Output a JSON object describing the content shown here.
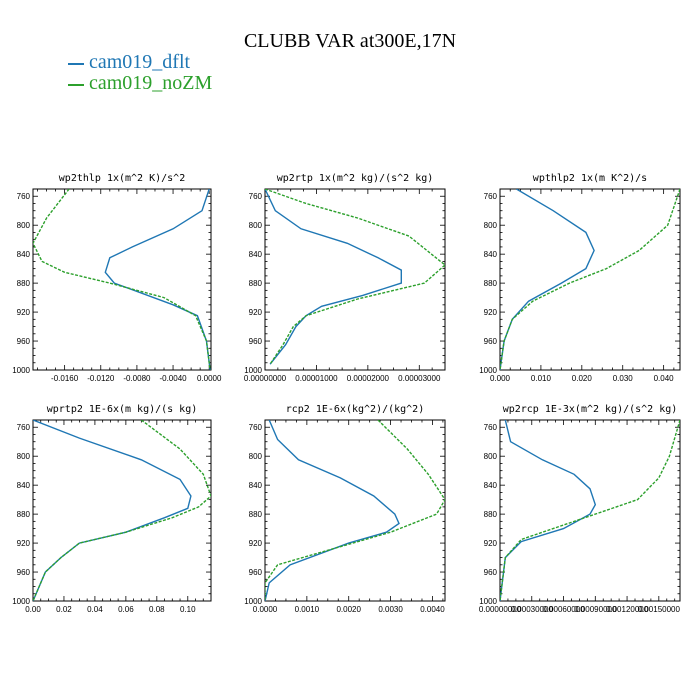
{
  "title": "CLUBB VAR at300E,17N",
  "legend": [
    {
      "label": "cam019_dflt",
      "color": "#1f77b4"
    },
    {
      "label": "cam019_noZM",
      "color": "#2ca02c"
    }
  ],
  "chart_data": [
    {
      "type": "line",
      "title": "wp2thlp  1x(m^2 K)/s^2",
      "ylim": [
        1000,
        750
      ],
      "yticks": [
        760,
        800,
        840,
        880,
        920,
        960,
        1000
      ],
      "xlim": [
        -0.0195,
        0.0002
      ],
      "xticks": [
        -0.016,
        -0.012,
        -0.008,
        -0.004,
        0.0
      ],
      "xtick_labels": [
        "-0.0160",
        "-0.0120",
        "-0.0080",
        "-0.0040",
        "0.0000"
      ],
      "series": [
        {
          "name": "cam019_dflt",
          "color": "#1f77b4",
          "dashed": false,
          "x": [
            0.0,
            -0.0008,
            -0.004,
            -0.0085,
            -0.011,
            -0.0115,
            -0.0105,
            -0.004,
            -0.0013,
            -0.0003,
            0.0001
          ],
          "y": [
            750,
            780,
            805,
            830,
            845,
            865,
            880,
            910,
            925,
            960,
            1000
          ]
        },
        {
          "name": "cam019_noZM",
          "color": "#2ca02c",
          "dashed": true,
          "x": [
            -0.0155,
            -0.018,
            -0.0195,
            -0.0185,
            -0.016,
            -0.011,
            -0.005,
            -0.0015,
            -0.0003,
            0.0001
          ],
          "y": [
            750,
            790,
            825,
            850,
            865,
            880,
            900,
            925,
            960,
            1000
          ]
        }
      ]
    },
    {
      "type": "line",
      "title": "wp2rtp  1x(m^2 kg)/(s^2 kg)",
      "ylim": [
        1000,
        750
      ],
      "yticks": [
        760,
        800,
        840,
        880,
        920,
        960,
        1000
      ],
      "xlim": [
        0.0,
        3.5e-05
      ],
      "xticks": [
        0.0,
        1e-05,
        2e-05,
        3e-05
      ],
      "xtick_labels": [
        "0.00000000",
        "0.00001000",
        "0.00002000",
        "0.00003000"
      ],
      "series": [
        {
          "name": "cam019_dflt",
          "color": "#1f77b4",
          "dashed": false,
          "x": [
            0.0,
            2e-06,
            7e-06,
            1.6e-05,
            2.2e-05,
            2.65e-05,
            2.65e-05,
            1.9e-05,
            1.1e-05,
            8e-06,
            6e-06,
            4e-06,
            1e-06
          ],
          "y": [
            750,
            780,
            805,
            825,
            845,
            862,
            880,
            897,
            912,
            925,
            940,
            965,
            992
          ]
        },
        {
          "name": "cam019_noZM",
          "color": "#2ca02c",
          "dashed": true,
          "x": [
            0.0,
            8e-06,
            1.8e-05,
            2.8e-05,
            3.5e-05,
            3.1e-05,
            1.8e-05,
            8e-06,
            5.5e-06,
            3.5e-06,
            1e-06
          ],
          "y": [
            750,
            770,
            790,
            815,
            855,
            880,
            902,
            925,
            940,
            965,
            992
          ]
        }
      ]
    },
    {
      "type": "line",
      "title": "wpthlp2  1x(m K^2)/s",
      "ylim": [
        1000,
        750
      ],
      "yticks": [
        760,
        800,
        840,
        880,
        920,
        960,
        1000
      ],
      "xlim": [
        0.0,
        0.044
      ],
      "xticks": [
        0.0,
        0.01,
        0.02,
        0.03,
        0.04
      ],
      "xtick_labels": [
        "0.000",
        "0.010",
        "0.020",
        "0.030",
        "0.040"
      ],
      "series": [
        {
          "name": "cam019_dflt",
          "color": "#1f77b4",
          "dashed": false,
          "x": [
            0.004,
            0.013,
            0.021,
            0.023,
            0.021,
            0.015,
            0.007,
            0.003,
            0.001,
            0.0
          ],
          "y": [
            750,
            780,
            810,
            835,
            860,
            880,
            905,
            930,
            960,
            1000
          ]
        },
        {
          "name": "cam019_noZM",
          "color": "#2ca02c",
          "dashed": true,
          "x": [
            0.044,
            0.041,
            0.034,
            0.026,
            0.017,
            0.008,
            0.003,
            0.001,
            0.0
          ],
          "y": [
            750,
            800,
            835,
            860,
            880,
            905,
            930,
            960,
            1000
          ]
        }
      ]
    },
    {
      "type": "line",
      "title": "wprtp2  1E-6x(m kg)/(s kg)",
      "ylim": [
        1000,
        750
      ],
      "yticks": [
        760,
        800,
        840,
        880,
        920,
        960,
        1000
      ],
      "xlim": [
        0.0,
        0.115
      ],
      "xticks": [
        0.0,
        0.02,
        0.04,
        0.06,
        0.08,
        0.1
      ],
      "xtick_labels": [
        "0.00",
        "0.02",
        "0.04",
        "0.06",
        "0.08",
        "0.10"
      ],
      "series": [
        {
          "name": "cam019_dflt",
          "color": "#1f77b4",
          "dashed": false,
          "x": [
            0.0,
            0.03,
            0.07,
            0.095,
            0.102,
            0.1,
            0.085,
            0.06,
            0.03,
            0.018,
            0.008,
            0.0
          ],
          "y": [
            750,
            775,
            805,
            832,
            855,
            872,
            885,
            905,
            920,
            940,
            960,
            1000
          ]
        },
        {
          "name": "cam019_noZM",
          "color": "#2ca02c",
          "dashed": true,
          "x": [
            0.07,
            0.095,
            0.11,
            0.115,
            0.107,
            0.09,
            0.06,
            0.03,
            0.018,
            0.008,
            0.0
          ],
          "y": [
            750,
            790,
            825,
            855,
            870,
            885,
            905,
            920,
            940,
            960,
            1000
          ]
        }
      ]
    },
    {
      "type": "line",
      "title": "rcp2  1E-6x(kg^2)/(kg^2)",
      "ylim": [
        1000,
        750
      ],
      "yticks": [
        760,
        800,
        840,
        880,
        920,
        960,
        1000
      ],
      "xlim": [
        0.0,
        0.0043
      ],
      "xticks": [
        0.0,
        0.001,
        0.002,
        0.003,
        0.004
      ],
      "xtick_labels": [
        "0.0000",
        "0.0010",
        "0.0020",
        "0.0030",
        "0.0040"
      ],
      "series": [
        {
          "name": "cam019_dflt",
          "color": "#1f77b4",
          "dashed": false,
          "x": [
            0.0001,
            0.0003,
            0.0008,
            0.0018,
            0.0026,
            0.0031,
            0.0032,
            0.0029,
            0.002,
            0.0006,
            0.0001,
            0.0
          ],
          "y": [
            750,
            777,
            805,
            830,
            855,
            880,
            893,
            905,
            920,
            950,
            975,
            1000
          ]
        },
        {
          "name": "cam019_noZM",
          "color": "#2ca02c",
          "dashed": true,
          "x": [
            0.0027,
            0.0034,
            0.0039,
            0.0043,
            0.0041,
            0.003,
            0.0015,
            0.0003,
            0.0,
            0.0
          ],
          "y": [
            750,
            790,
            825,
            860,
            880,
            905,
            930,
            950,
            975,
            1000
          ]
        }
      ]
    },
    {
      "type": "line",
      "title": "wp2rcp  1E-3x(m^2 kg)/(s^2 kg)",
      "ylim": [
        1000,
        750
      ],
      "yticks": [
        760,
        800,
        840,
        880,
        920,
        960,
        1000
      ],
      "xlim": [
        0.0,
        0.0017
      ],
      "xticks": [
        0.0,
        0.0003,
        0.0006,
        0.0009,
        0.0012,
        0.0015
      ],
      "xtick_labels": [
        "0.00000000",
        "0.00030000",
        "0.00060000",
        "0.00090000",
        "0.00120000",
        "0.00150000"
      ],
      "series": [
        {
          "name": "cam019_dflt",
          "color": "#1f77b4",
          "dashed": false,
          "x": [
            5e-05,
            0.0001,
            0.0004,
            0.0007,
            0.00085,
            0.0009,
            0.00085,
            0.0006,
            0.0002,
            5e-05,
            0.0
          ],
          "y": [
            750,
            780,
            805,
            825,
            845,
            867,
            880,
            900,
            918,
            940,
            1000
          ]
        },
        {
          "name": "cam019_noZM",
          "color": "#2ca02c",
          "dashed": true,
          "x": [
            0.0017,
            0.0016,
            0.0015,
            0.0013,
            0.0007,
            0.0002,
            5e-05,
            0.0
          ],
          "y": [
            750,
            800,
            830,
            860,
            890,
            915,
            940,
            1000
          ]
        }
      ]
    }
  ]
}
